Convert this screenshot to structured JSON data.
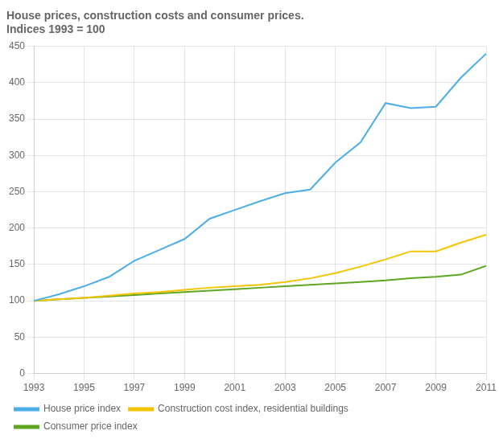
{
  "chart_data": {
    "type": "line",
    "title": "House prices, construction costs and consumer prices.",
    "subtitle": "Indices 1993 = 100",
    "x": [
      1993,
      1994,
      1995,
      1996,
      1997,
      1998,
      1999,
      2000,
      2001,
      2002,
      2003,
      2004,
      2005,
      2006,
      2007,
      2008,
      2009,
      2010,
      2011
    ],
    "series": [
      {
        "name": "House price index",
        "color": "#4baee8",
        "values": [
          100,
          109,
          120,
          133,
          155,
          170,
          185,
          213,
          225,
          237,
          248,
          253,
          290,
          318,
          372,
          365,
          367,
          407,
          440
        ]
      },
      {
        "name": "Construction cost index, residential buildings",
        "color": "#f5c400",
        "values": [
          100,
          102,
          104,
          107,
          110,
          112,
          115,
          118,
          120,
          122,
          126,
          131,
          138,
          147,
          157,
          168,
          168,
          180,
          191
        ]
      },
      {
        "name": "Consumer price index",
        "color": "#5ea621",
        "values": [
          100,
          102,
          104,
          106,
          108,
          110,
          112,
          114,
          116,
          118,
          120,
          122,
          124,
          126,
          128,
          131,
          133,
          136,
          148
        ]
      }
    ],
    "xlim": [
      1993,
      2011
    ],
    "xticks": [
      1993,
      1995,
      1997,
      1999,
      2001,
      2003,
      2005,
      2007,
      2009,
      2011
    ],
    "ylim": [
      0,
      450
    ],
    "yticks": [
      0,
      50,
      100,
      150,
      200,
      250,
      300,
      350,
      400,
      450
    ],
    "grid": true,
    "legend": "bottom"
  }
}
